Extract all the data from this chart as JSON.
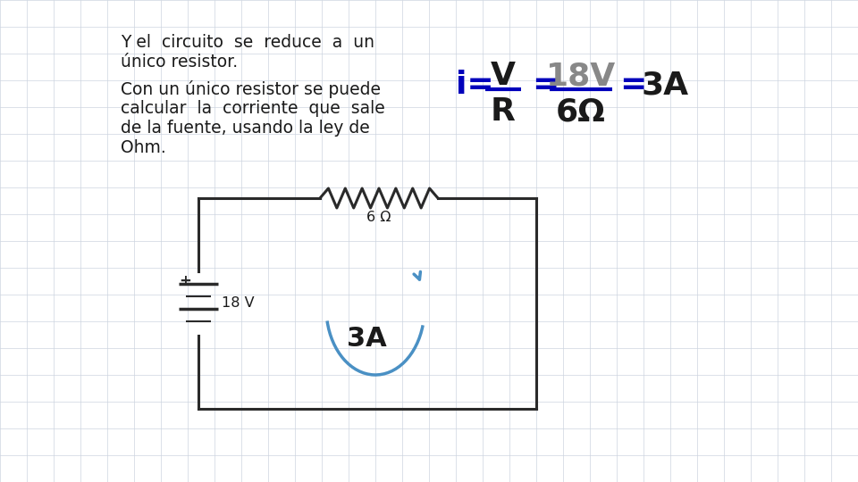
{
  "bg_color": "#ffffff",
  "grid_color": "#cdd5e0",
  "text_color": "#1a1a1a",
  "blue_color": "#0000bb",
  "gray_color": "#888888",
  "circuit_color": "#2a2a2a",
  "arrow_color": "#4a90c4",
  "text1_line1": "Y el  circuito  se  reduce  a  un",
  "text1_line2": "único resistor.",
  "text2_line1": "Con un único resistor se puede",
  "text2_line2": "calcular  la  corriente  que  sale",
  "text2_line3": "de la fuente, usando la ley de",
  "text2_line4": "Ohm.",
  "resistor_label": "6 Ω",
  "battery_label": "18 V",
  "current_label": "3A",
  "formula_i_eq": "i=",
  "formula_V": "V",
  "formula_R": "R",
  "formula_18V": "18V",
  "formula_6Omega": "6Ω",
  "formula_eq3A": "=3A"
}
